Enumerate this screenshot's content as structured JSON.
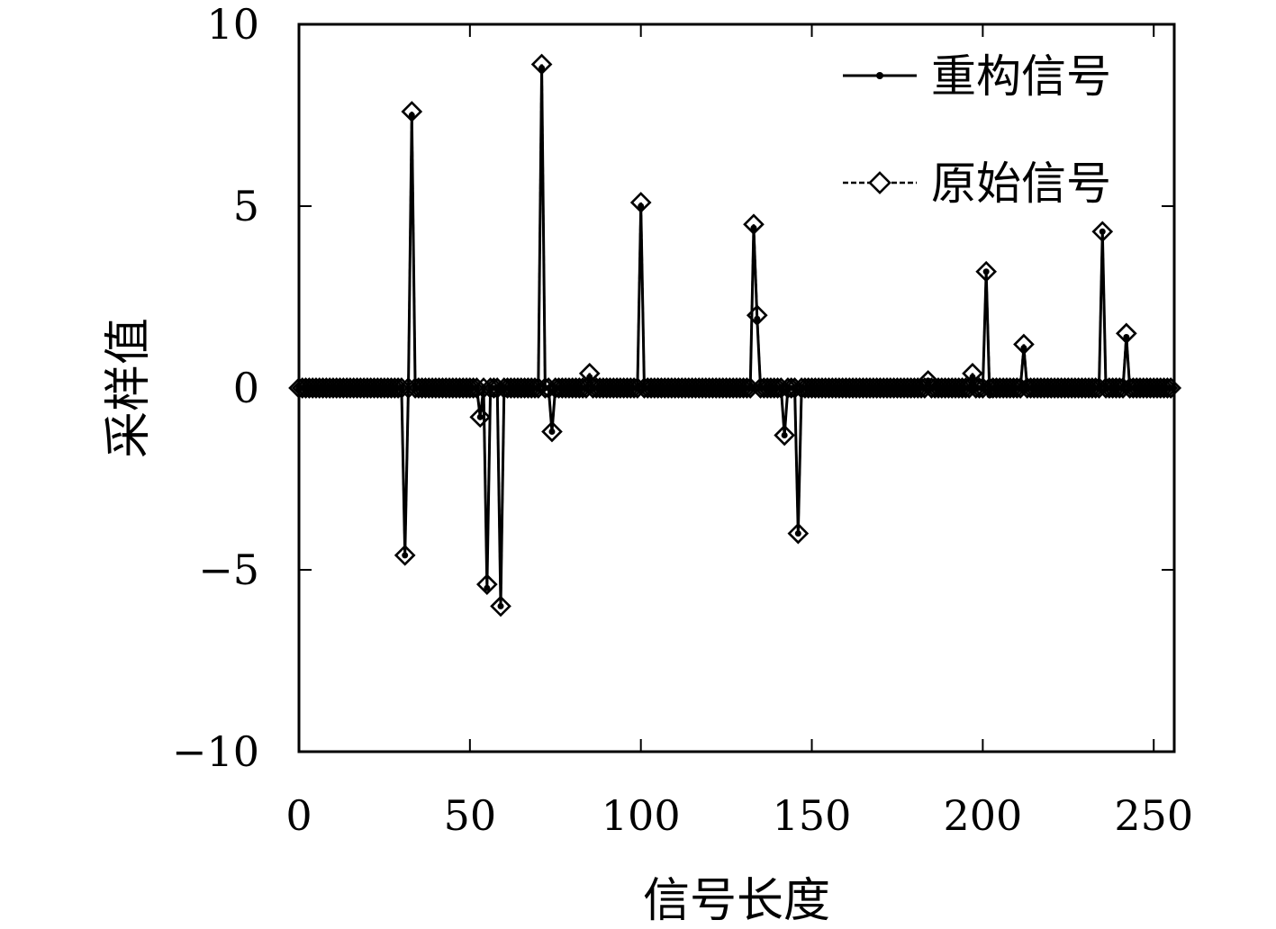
{
  "chart_data": {
    "type": "line",
    "xlabel": "信号长度",
    "ylabel": "采样值",
    "xlim": [
      0,
      256
    ],
    "ylim": [
      -10,
      10
    ],
    "xticks": [
      0,
      50,
      100,
      150,
      200,
      250
    ],
    "yticks": [
      -10,
      -5,
      0,
      5,
      10
    ],
    "xtick_labels": [
      "0",
      "50",
      "100",
      "150",
      "200",
      "250"
    ],
    "ytick_labels": [
      "−10",
      "−5",
      "0",
      "5",
      "10"
    ],
    "length": 256,
    "grid": false,
    "legend_position": "top-right",
    "series": [
      {
        "name": "重构信号",
        "marker": "dot",
        "color": "#000000",
        "nonzero": [
          {
            "x": 31,
            "y": -4.6
          },
          {
            "x": 33,
            "y": 7.5
          },
          {
            "x": 53,
            "y": -0.8
          },
          {
            "x": 55,
            "y": -5.5
          },
          {
            "x": 59,
            "y": -6.0
          },
          {
            "x": 71,
            "y": 8.8
          },
          {
            "x": 74,
            "y": -1.2
          },
          {
            "x": 85,
            "y": 0.3
          },
          {
            "x": 100,
            "y": 5.0
          },
          {
            "x": 133,
            "y": 4.4
          },
          {
            "x": 134,
            "y": 1.9
          },
          {
            "x": 142,
            "y": -1.3
          },
          {
            "x": 146,
            "y": -4.0
          },
          {
            "x": 184,
            "y": 0.2
          },
          {
            "x": 197,
            "y": 0.3
          },
          {
            "x": 201,
            "y": 3.2
          },
          {
            "x": 202,
            "y": -0.2
          },
          {
            "x": 212,
            "y": 1.1
          },
          {
            "x": 235,
            "y": 4.3
          },
          {
            "x": 242,
            "y": 1.4
          }
        ]
      },
      {
        "name": "原始信号",
        "marker": "diamond",
        "color": "#000000",
        "nonzero": [
          {
            "x": 31,
            "y": -4.6
          },
          {
            "x": 33,
            "y": 7.6
          },
          {
            "x": 53,
            "y": -0.8
          },
          {
            "x": 55,
            "y": -5.4
          },
          {
            "x": 59,
            "y": -6.0
          },
          {
            "x": 71,
            "y": 8.9
          },
          {
            "x": 74,
            "y": -1.2
          },
          {
            "x": 85,
            "y": 0.4
          },
          {
            "x": 100,
            "y": 5.1
          },
          {
            "x": 133,
            "y": 4.5
          },
          {
            "x": 134,
            "y": 2.0
          },
          {
            "x": 142,
            "y": -1.3
          },
          {
            "x": 146,
            "y": -4.0
          },
          {
            "x": 184,
            "y": 0.2
          },
          {
            "x": 197,
            "y": 0.4
          },
          {
            "x": 201,
            "y": 3.2
          },
          {
            "x": 212,
            "y": 1.2
          },
          {
            "x": 235,
            "y": 4.3
          },
          {
            "x": 242,
            "y": 1.5
          }
        ]
      }
    ]
  }
}
